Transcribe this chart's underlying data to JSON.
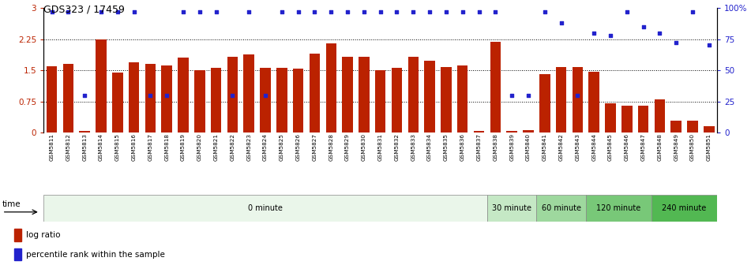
{
  "title": "GDS323 / 17459",
  "samples": [
    "GSM5811",
    "GSM5812",
    "GSM5813",
    "GSM5814",
    "GSM5815",
    "GSM5816",
    "GSM5817",
    "GSM5818",
    "GSM5819",
    "GSM5820",
    "GSM5821",
    "GSM5822",
    "GSM5823",
    "GSM5824",
    "GSM5825",
    "GSM5826",
    "GSM5827",
    "GSM5828",
    "GSM5829",
    "GSM5830",
    "GSM5831",
    "GSM5832",
    "GSM5833",
    "GSM5834",
    "GSM5835",
    "GSM5836",
    "GSM5837",
    "GSM5838",
    "GSM5839",
    "GSM5840",
    "GSM5841",
    "GSM5842",
    "GSM5843",
    "GSM5844",
    "GSM5845",
    "GSM5846",
    "GSM5847",
    "GSM5848",
    "GSM5849",
    "GSM5850",
    "GSM5851"
  ],
  "log_ratio": [
    1.6,
    1.65,
    0.04,
    2.25,
    1.45,
    1.7,
    1.65,
    1.62,
    1.8,
    1.5,
    1.55,
    1.82,
    1.88,
    1.55,
    1.55,
    1.53,
    1.9,
    2.15,
    1.82,
    1.82,
    1.5,
    1.55,
    1.83,
    1.72,
    1.58,
    1.62,
    0.04,
    2.18,
    0.04,
    0.06,
    1.4,
    1.57,
    1.57,
    1.47,
    0.7,
    0.65,
    0.65,
    0.8,
    0.28,
    0.28,
    0.15
  ],
  "percentile": [
    97,
    97,
    30,
    97,
    97,
    97,
    30,
    30,
    97,
    97,
    97,
    30,
    97,
    30,
    97,
    97,
    97,
    97,
    97,
    97,
    97,
    97,
    97,
    97,
    97,
    97,
    97,
    97,
    30,
    30,
    97,
    88,
    30,
    80,
    78,
    97,
    85,
    80,
    72,
    97,
    70
  ],
  "time_groups": [
    {
      "label": "0 minute",
      "start": 0,
      "end": 27,
      "color": "#eaf6ea"
    },
    {
      "label": "30 minute",
      "start": 27,
      "end": 30,
      "color": "#c5e8c5"
    },
    {
      "label": "60 minute",
      "start": 30,
      "end": 33,
      "color": "#9ed89e"
    },
    {
      "label": "120 minute",
      "start": 33,
      "end": 37,
      "color": "#78c878"
    },
    {
      "label": "240 minute",
      "start": 37,
      "end": 41,
      "color": "#52b852"
    }
  ],
  "bar_color": "#bb2200",
  "dot_color": "#2222cc",
  "ylim_left": [
    0,
    3.0
  ],
  "ylim_right": [
    0,
    100
  ],
  "yticks_left": [
    0,
    0.75,
    1.5,
    2.25,
    3.0
  ],
  "yticks_right": [
    0,
    25,
    50,
    75,
    100
  ],
  "ytick_labels_left": [
    "0",
    "0.75",
    "1.5",
    "2.25",
    "3"
  ],
  "ytick_labels_right": [
    "0",
    "25",
    "50",
    "75",
    "100%"
  ],
  "hlines": [
    0.75,
    1.5,
    2.25
  ],
  "legend_log_ratio": "log ratio",
  "legend_percentile": "percentile rank within the sample",
  "time_label": "time",
  "background_color": "#ffffff"
}
